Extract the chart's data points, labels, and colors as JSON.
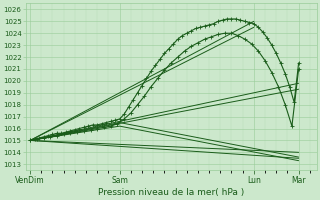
{
  "title": "Pression niveau de la mer( hPa )",
  "bg_color": "#cce8cc",
  "grid_color": "#99cc99",
  "line_color": "#1a5c1a",
  "ylim": [
    1012.5,
    1026.5
  ],
  "yticks": [
    1013,
    1014,
    1015,
    1016,
    1017,
    1018,
    1019,
    1020,
    1021,
    1022,
    1023,
    1024,
    1025,
    1026
  ],
  "xtick_labels": [
    "VenDim",
    "Sam",
    "Lun",
    "Mar"
  ],
  "xtick_positions": [
    0,
    40,
    100,
    120
  ],
  "xlim": [
    -2,
    128
  ],
  "straight_lines": [
    {
      "x": [
        0,
        120
      ],
      "y": [
        1015.0,
        1013.5
      ]
    },
    {
      "x": [
        0,
        120
      ],
      "y": [
        1015.0,
        1014.0
      ]
    },
    {
      "x": [
        0,
        120
      ],
      "y": [
        1015.0,
        1019.3
      ]
    },
    {
      "x": [
        0,
        120
      ],
      "y": [
        1015.0,
        1019.8
      ]
    },
    {
      "x": [
        0,
        100
      ],
      "y": [
        1015.0,
        1024.5
      ]
    },
    {
      "x": [
        0,
        100
      ],
      "y": [
        1015.0,
        1025.0
      ]
    },
    {
      "x": [
        0,
        40,
        120
      ],
      "y": [
        1015.0,
        1016.2,
        1013.3
      ]
    },
    {
      "x": [
        0,
        40,
        120
      ],
      "y": [
        1015.0,
        1016.5,
        1013.6
      ]
    }
  ],
  "detail_line": {
    "x": [
      0,
      2,
      4,
      6,
      8,
      10,
      12,
      14,
      16,
      18,
      20,
      22,
      24,
      26,
      28,
      30,
      32,
      34,
      36,
      38,
      40,
      42,
      44,
      46,
      48,
      50,
      52,
      54,
      56,
      58,
      60,
      62,
      64,
      66,
      68,
      70,
      72,
      74,
      76,
      78,
      80,
      82,
      84,
      86,
      88,
      90,
      92,
      94,
      96,
      98,
      100,
      102,
      104,
      106,
      108,
      110,
      112,
      114,
      116,
      118,
      120
    ],
    "y": [
      1015.0,
      1015.1,
      1015.2,
      1015.3,
      1015.4,
      1015.5,
      1015.6,
      1015.6,
      1015.7,
      1015.8,
      1015.9,
      1016.0,
      1016.1,
      1016.2,
      1016.3,
      1016.3,
      1016.4,
      1016.5,
      1016.6,
      1016.7,
      1016.8,
      1017.2,
      1017.8,
      1018.4,
      1019.0,
      1019.6,
      1020.2,
      1020.8,
      1021.3,
      1021.8,
      1022.3,
      1022.7,
      1023.1,
      1023.5,
      1023.8,
      1024.0,
      1024.2,
      1024.4,
      1024.5,
      1024.6,
      1024.7,
      1024.8,
      1025.0,
      1025.1,
      1025.2,
      1025.2,
      1025.2,
      1025.1,
      1025.0,
      1024.9,
      1024.8,
      1024.5,
      1024.1,
      1023.6,
      1023.0,
      1022.3,
      1021.5,
      1020.6,
      1019.5,
      1018.2,
      1021.5
    ]
  },
  "detail_line2": {
    "x": [
      0,
      3,
      6,
      9,
      12,
      15,
      18,
      21,
      24,
      27,
      30,
      33,
      36,
      39,
      42,
      45,
      48,
      51,
      54,
      57,
      60,
      63,
      66,
      69,
      72,
      75,
      78,
      81,
      84,
      87,
      90,
      93,
      96,
      99,
      102,
      105,
      108,
      111,
      114,
      117,
      120
    ],
    "y": [
      1015.0,
      1015.1,
      1015.2,
      1015.3,
      1015.4,
      1015.5,
      1015.6,
      1015.7,
      1015.8,
      1015.9,
      1016.0,
      1016.1,
      1016.2,
      1016.4,
      1016.8,
      1017.3,
      1018.0,
      1018.7,
      1019.5,
      1020.2,
      1020.9,
      1021.5,
      1022.0,
      1022.5,
      1022.9,
      1023.2,
      1023.5,
      1023.7,
      1023.9,
      1024.0,
      1024.0,
      1023.8,
      1023.5,
      1023.1,
      1022.5,
      1021.7,
      1020.7,
      1019.5,
      1018.0,
      1016.2,
      1021.0
    ]
  }
}
